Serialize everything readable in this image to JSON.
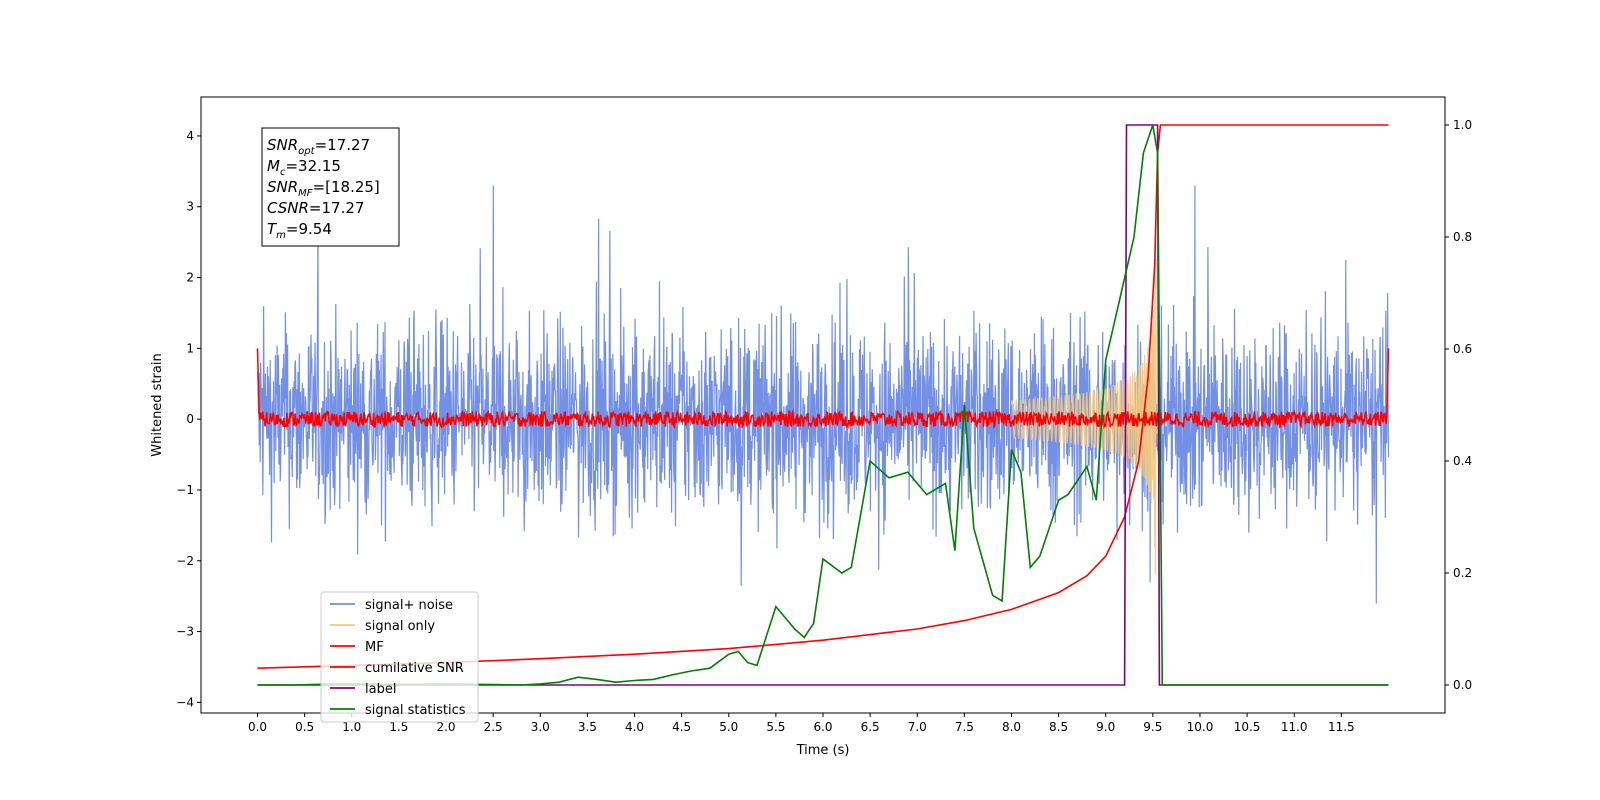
{
  "chart_data": {
    "type": "line",
    "title": "",
    "xlabel": "Time (s)",
    "ylabel": "Whitened strain",
    "xlim": [
      -0.6,
      12.6
    ],
    "ylim": [
      -4.15,
      4.55
    ],
    "y2lim": [
      -0.05,
      1.05
    ],
    "xticks": [
      "0.0",
      "0.5",
      "1.0",
      "1.5",
      "2.0",
      "2.5",
      "3.0",
      "3.5",
      "4.0",
      "4.5",
      "5.0",
      "5.5",
      "6.0",
      "6.5",
      "7.0",
      "7.5",
      "8.0",
      "8.5",
      "9.0",
      "9.5",
      "10.0",
      "10.5",
      "11.0",
      "11.5"
    ],
    "yticks": [
      "4",
      "3",
      "2",
      "1",
      "0",
      "−1",
      "−2",
      "−3",
      "−4"
    ],
    "y2ticks": [
      "1.0",
      "0.8",
      "0.6",
      "0.4",
      "0.2",
      "0.0"
    ],
    "grid": false,
    "legend_position": "lower-left",
    "annotation": {
      "lines": [
        {
          "base": "SNR",
          "sub": "opt",
          "rest": "=17.27"
        },
        {
          "base": "M",
          "sub": "c",
          "rest": "=32.15"
        },
        {
          "base": "SNR",
          "sub": "MF",
          "rest": "=[18.25]"
        },
        {
          "base": "CSNR",
          "sub": "",
          "rest": "=17.27"
        },
        {
          "base": "T",
          "sub": "m",
          "rest": "=9.54"
        }
      ]
    },
    "series": [
      {
        "name": "signal+ noise",
        "color": "#7390e6",
        "axis": "left",
        "noise_amplitude": 2.3,
        "t_start": 0.0,
        "t_end": 12.0
      },
      {
        "name": "signal only",
        "color": "#f5c97a",
        "axis": "left",
        "peak_time": 9.54,
        "peak_amplitude": 3.1
      },
      {
        "name": "MF",
        "color": "#ff0000",
        "axis": "left",
        "baseline": 0.0,
        "edge_value": 1.0
      },
      {
        "name": "cumilative SNR",
        "color": "#ff0000",
        "axis": "right",
        "points": [
          [
            0.0,
            0.03
          ],
          [
            1.0,
            0.035
          ],
          [
            2.0,
            0.04
          ],
          [
            3.0,
            0.047
          ],
          [
            4.0,
            0.055
          ],
          [
            5.0,
            0.065
          ],
          [
            6.0,
            0.08
          ],
          [
            6.5,
            0.09
          ],
          [
            7.0,
            0.1
          ],
          [
            7.5,
            0.115
          ],
          [
            8.0,
            0.135
          ],
          [
            8.5,
            0.165
          ],
          [
            8.8,
            0.195
          ],
          [
            9.0,
            0.23
          ],
          [
            9.2,
            0.3
          ],
          [
            9.35,
            0.4
          ],
          [
            9.45,
            0.55
          ],
          [
            9.52,
            0.75
          ],
          [
            9.55,
            0.95
          ],
          [
            9.58,
            1.0
          ],
          [
            12.0,
            1.0
          ]
        ]
      },
      {
        "name": "label",
        "color": "#800080",
        "axis": "right",
        "points": [
          [
            0.0,
            0.0
          ],
          [
            9.2,
            0.0
          ],
          [
            9.22,
            1.0
          ],
          [
            9.55,
            1.0
          ],
          [
            9.57,
            0.0
          ],
          [
            12.0,
            0.0
          ]
        ]
      },
      {
        "name": "signal statistics",
        "color": "#008000",
        "axis": "right",
        "points": [
          [
            0.0,
            0.0
          ],
          [
            0.4,
            0.0
          ],
          [
            0.8,
            0.002
          ],
          [
            1.2,
            0.002
          ],
          [
            1.6,
            0.001
          ],
          [
            2.0,
            0.002
          ],
          [
            2.4,
            0.001
          ],
          [
            2.8,
            0.0
          ],
          [
            3.0,
            0.002
          ],
          [
            3.2,
            0.005
          ],
          [
            3.4,
            0.014
          ],
          [
            3.6,
            0.01
          ],
          [
            3.8,
            0.005
          ],
          [
            4.0,
            0.008
          ],
          [
            4.2,
            0.01
          ],
          [
            4.4,
            0.018
          ],
          [
            4.6,
            0.025
          ],
          [
            4.8,
            0.03
          ],
          [
            5.0,
            0.055
          ],
          [
            5.1,
            0.06
          ],
          [
            5.2,
            0.04
          ],
          [
            5.3,
            0.035
          ],
          [
            5.5,
            0.14
          ],
          [
            5.7,
            0.1
          ],
          [
            5.8,
            0.085
          ],
          [
            5.9,
            0.11
          ],
          [
            6.0,
            0.225
          ],
          [
            6.2,
            0.2
          ],
          [
            6.3,
            0.21
          ],
          [
            6.5,
            0.4
          ],
          [
            6.7,
            0.37
          ],
          [
            6.9,
            0.38
          ],
          [
            7.1,
            0.34
          ],
          [
            7.3,
            0.36
          ],
          [
            7.4,
            0.24
          ],
          [
            7.5,
            0.5
          ],
          [
            7.6,
            0.28
          ],
          [
            7.8,
            0.16
          ],
          [
            7.9,
            0.15
          ],
          [
            8.0,
            0.42
          ],
          [
            8.1,
            0.38
          ],
          [
            8.2,
            0.21
          ],
          [
            8.3,
            0.23
          ],
          [
            8.5,
            0.33
          ],
          [
            8.6,
            0.34
          ],
          [
            8.8,
            0.39
          ],
          [
            8.9,
            0.33
          ],
          [
            9.0,
            0.58
          ],
          [
            9.15,
            0.69
          ],
          [
            9.3,
            0.8
          ],
          [
            9.4,
            0.95
          ],
          [
            9.5,
            1.0
          ],
          [
            9.55,
            0.95
          ],
          [
            9.6,
            0.0
          ],
          [
            12.0,
            0.0
          ]
        ]
      }
    ]
  }
}
